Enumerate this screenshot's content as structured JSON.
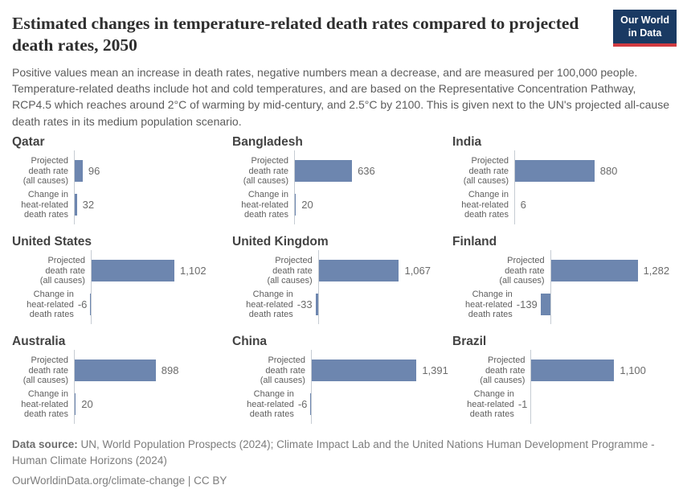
{
  "header": {
    "title": "Estimated changes in temperature-related death rates compared to projected death rates, 2050",
    "subtitle": "Positive values mean an increase in death rates, negative numbers mean a decrease, and are measured per 100,000 people. Temperature-related deaths include hot and cold temperatures, and are based on the Representative Concentration Pathway, RCP4.5 which reaches around 2°C of warming by mid-century, and 2.5°C by 2100. This is given next to the UN's projected all-cause death rates in its medium population scenario.",
    "logo": {
      "line1": "Our World",
      "line2": "in Data"
    }
  },
  "chart_data": {
    "type": "bar",
    "orientation": "horizontal",
    "title": "Estimated changes in temperature-related death rates compared to projected death rates, 2050",
    "categories": [
      "Projected\ndeath rate\n(all causes)",
      "Change in\nheat-related\ndeath rates"
    ],
    "category_names": [
      "Projected death rate (all causes)",
      "Change in heat-related death rates"
    ],
    "bar_color": "#6d86af",
    "axis_color": "#c6ccd3",
    "legend": "none",
    "grid": "off",
    "panels": [
      {
        "country": "Qatar",
        "values": [
          96,
          32
        ],
        "value_labels": [
          "96",
          "32"
        ],
        "xlim": [
          0,
          1500
        ]
      },
      {
        "country": "Bangladesh",
        "values": [
          636,
          20
        ],
        "value_labels": [
          "636",
          "20"
        ],
        "xlim": [
          0,
          1500
        ]
      },
      {
        "country": "India",
        "values": [
          880,
          6
        ],
        "value_labels": [
          "880",
          "6"
        ],
        "xlim": [
          0,
          1500
        ]
      },
      {
        "country": "United States",
        "values": [
          1102,
          -6
        ],
        "value_labels": [
          "1,102",
          "-6"
        ],
        "xlim": [
          -6,
          1800
        ]
      },
      {
        "country": "United Kingdom",
        "values": [
          1067,
          -33
        ],
        "value_labels": [
          "1,067",
          "-33"
        ],
        "xlim": [
          -33,
          1800
        ]
      },
      {
        "country": "Finland",
        "values": [
          1282,
          -139
        ],
        "value_labels": [
          "1,282",
          "-139"
        ],
        "xlim": [
          -139,
          2000
        ]
      },
      {
        "country": "Australia",
        "values": [
          898,
          20
        ],
        "value_labels": [
          "898",
          "20"
        ],
        "xlim": [
          0,
          1500
        ]
      },
      {
        "country": "China",
        "values": [
          1391,
          -6
        ],
        "value_labels": [
          "1,391",
          "-6"
        ],
        "xlim": [
          -6,
          1800
        ]
      },
      {
        "country": "Brazil",
        "values": [
          1100,
          -1
        ],
        "value_labels": [
          "1,100",
          "-1"
        ],
        "xlim": [
          -1,
          1800
        ]
      }
    ]
  },
  "footer": {
    "source_label": "Data source:",
    "source_text": "UN, World Population Prospects (2024); Climate Impact Lab and the United Nations Human Development Programme - Human Climate Horizons (2024)",
    "license_line": "OurWorldinData.org/climate-change | CC BY"
  }
}
